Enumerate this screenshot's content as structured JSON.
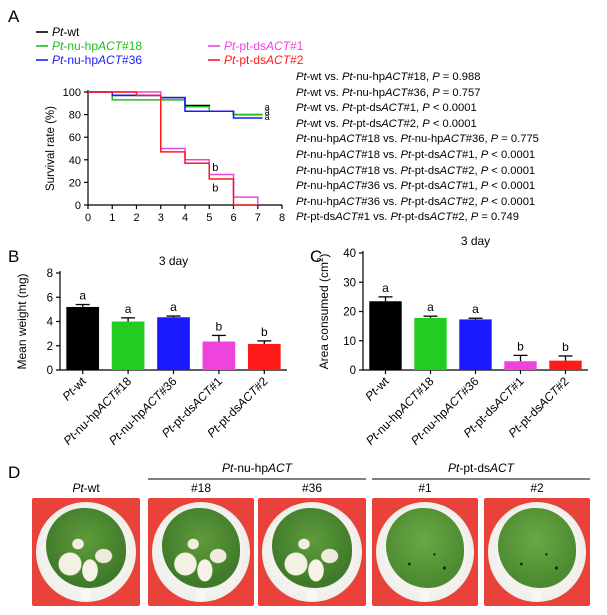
{
  "panels": {
    "a": "A",
    "b": "B",
    "c": "C",
    "d": "D"
  },
  "legend": [
    {
      "pre": "Pt",
      "mid": "-wt",
      "gene": "",
      "post": "",
      "color": "#000000"
    },
    {
      "pre": "Pt",
      "mid": "-nu-hp",
      "gene": "ACT",
      "post": "#18",
      "color": "#22bb22"
    },
    {
      "pre": "Pt",
      "mid": "-nu-hp",
      "gene": "ACT",
      "post": "#36",
      "color": "#1a1aff"
    },
    {
      "pre": "Pt",
      "mid": "-pt-ds",
      "gene": "ACT",
      "post": "#1",
      "color": "#ee44dd"
    },
    {
      "pre": "Pt",
      "mid": "-pt-ds",
      "gene": "ACT",
      "post": "#2",
      "color": "#ff1a1a"
    }
  ],
  "stats": [
    {
      "a_pre": "Pt",
      "a_mid": "-wt",
      "a_gene": "",
      "a_post": "",
      "b_pre": "Pt",
      "b_mid": "-nu-hp",
      "b_gene": "ACT",
      "b_post": "#18",
      "p_label": "P",
      "op": " = ",
      "p": "0.988"
    },
    {
      "a_pre": "Pt",
      "a_mid": "-wt",
      "a_gene": "",
      "a_post": "",
      "b_pre": "Pt",
      "b_mid": "-nu-hp",
      "b_gene": "ACT",
      "b_post": "#36",
      "p_label": "P",
      "op": " = ",
      "p": "0.757"
    },
    {
      "a_pre": "Pt",
      "a_mid": "-wt",
      "a_gene": "",
      "a_post": "",
      "b_pre": "Pt",
      "b_mid": "-pt-ds",
      "b_gene": "ACT",
      "b_post": "#1",
      "p_label": "P",
      "op": " < ",
      "p": "0.0001"
    },
    {
      "a_pre": "Pt",
      "a_mid": "-wt",
      "a_gene": "",
      "a_post": "",
      "b_pre": "Pt",
      "b_mid": "-pt-ds",
      "b_gene": "ACT",
      "b_post": "#2",
      "p_label": "P",
      "op": " < ",
      "p": "0.0001"
    },
    {
      "a_pre": "Pt",
      "a_mid": "-nu-hp",
      "a_gene": "ACT",
      "a_post": "#18",
      "b_pre": "Pt",
      "b_mid": "-nu-hp",
      "b_gene": "ACT",
      "b_post": "#36",
      "p_label": "P",
      "op": " = ",
      "p": "0.775"
    },
    {
      "a_pre": "Pt",
      "a_mid": "-nu-hp",
      "a_gene": "ACT",
      "a_post": "#18",
      "b_pre": "Pt",
      "b_mid": "-pt-ds",
      "b_gene": "ACT",
      "b_post": "#1",
      "p_label": "P",
      "op": " < ",
      "p": "0.0001"
    },
    {
      "a_pre": "Pt",
      "a_mid": "-nu-hp",
      "a_gene": "ACT",
      "a_post": "#18",
      "b_pre": "Pt",
      "b_mid": "-pt-ds",
      "b_gene": "ACT",
      "b_post": "#2",
      "p_label": "P",
      "op": " < ",
      "p": "0.0001"
    },
    {
      "a_pre": "Pt",
      "a_mid": "-nu-hp",
      "a_gene": "ACT",
      "a_post": "#36",
      "b_pre": "Pt",
      "b_mid": "-pt-ds",
      "b_gene": "ACT",
      "b_post": "#1",
      "p_label": "P",
      "op": " < ",
      "p": "0.0001"
    },
    {
      "a_pre": "Pt",
      "a_mid": "-nu-hp",
      "a_gene": "ACT",
      "a_post": "#36",
      "b_pre": "Pt",
      "b_mid": "-pt-ds",
      "b_gene": "ACT",
      "b_post": "#2",
      "p_label": "P",
      "op": " < ",
      "p": "0.0001"
    },
    {
      "a_pre": "Pt",
      "a_mid": "-pt-ds",
      "a_gene": "ACT",
      "a_post": "#1",
      "b_pre": "Pt",
      "b_mid": "-pt-ds",
      "b_gene": "ACT",
      "b_post": "#2",
      "p_label": "P",
      "op": " = ",
      "p": "0.749"
    }
  ],
  "stat_joiner": " vs. ",
  "chart_data": [
    {
      "type": "line",
      "step": true,
      "ylabel": "Survival rate (%)",
      "xlabel": "",
      "xlim": [
        0,
        8
      ],
      "ylim": [
        0,
        100
      ],
      "xticks": [
        "0",
        "1",
        "2",
        "3",
        "4",
        "5",
        "6",
        "7",
        "8"
      ],
      "yticks": [
        "0",
        "20",
        "40",
        "60",
        "80",
        "100"
      ],
      "series": [
        {
          "name": "Pt-wt",
          "color": "#000000",
          "x": [
            0,
            1,
            3,
            4,
            5,
            6,
            7.2
          ],
          "y": [
            100,
            97,
            95,
            88,
            83,
            80,
            80
          ],
          "group": "a"
        },
        {
          "name": "Pt-nu-hpACT#18",
          "color": "#22bb22",
          "x": [
            0,
            1,
            3,
            4,
            5,
            6,
            7.2
          ],
          "y": [
            100,
            93,
            93,
            87,
            83,
            80,
            80
          ],
          "group": "a"
        },
        {
          "name": "Pt-nu-hpACT#36",
          "color": "#1a1aff",
          "x": [
            0,
            1,
            3,
            4,
            5,
            6,
            7.2
          ],
          "y": [
            100,
            97,
            95,
            83,
            83,
            77,
            77
          ],
          "group": "a"
        },
        {
          "name": "Pt-pt-dsACT#1",
          "color": "#ee44dd",
          "x": [
            0,
            2,
            3,
            4,
            5,
            6,
            7
          ],
          "y": [
            100,
            100,
            50,
            40,
            27,
            7,
            0
          ],
          "group": "b"
        },
        {
          "name": "Pt-pt-dsACT#2",
          "color": "#ff1a1a",
          "x": [
            0,
            2,
            3,
            4,
            5,
            6,
            7
          ],
          "y": [
            100,
            97,
            47,
            37,
            23,
            0,
            0
          ],
          "group": "b"
        }
      ],
      "group_labels": {
        "a": [
          "a",
          "a",
          "a"
        ],
        "b": [
          "b",
          "b"
        ]
      }
    },
    {
      "type": "bar",
      "title": "3 day",
      "ylabel": "Mean weight (mg)",
      "ylim": [
        0,
        8
      ],
      "yticks": [
        "0",
        "2",
        "4",
        "6",
        "8"
      ],
      "categories": [
        {
          "pre": "Pt",
          "mid": "-wt",
          "gene": "",
          "post": ""
        },
        {
          "pre": "Pt",
          "mid": "-nu-hp",
          "gene": "ACT",
          "post": "#18"
        },
        {
          "pre": "Pt",
          "mid": "-nu-hp",
          "gene": "ACT",
          "post": "#36"
        },
        {
          "pre": "Pt",
          "mid": "-pt-ds",
          "gene": "ACT",
          "post": "#1"
        },
        {
          "pre": "Pt",
          "mid": "-pt-ds",
          "gene": "ACT",
          "post": "#2"
        }
      ],
      "values": [
        5.2,
        4.0,
        4.35,
        2.35,
        2.15
      ],
      "errors": [
        0.2,
        0.3,
        0.1,
        0.5,
        0.25
      ],
      "letters": [
        "a",
        "a",
        "a",
        "b",
        "b"
      ],
      "colors": [
        "#000000",
        "#22cc22",
        "#1a1aff",
        "#ee44dd",
        "#ff1a1a"
      ]
    },
    {
      "type": "bar",
      "title": "3 day",
      "ylabel_pre": "Area consumed (cm",
      "ylabel_sup": "2",
      "ylabel_post": ")",
      "ylim": [
        0,
        40
      ],
      "yticks": [
        "0",
        "10",
        "20",
        "30",
        "40"
      ],
      "categories": [
        {
          "pre": "Pt",
          "mid": "-wt",
          "gene": "",
          "post": ""
        },
        {
          "pre": "Pt",
          "mid": "-nu-hp",
          "gene": "ACT",
          "post": "#18"
        },
        {
          "pre": "Pt",
          "mid": "-nu-hp",
          "gene": "ACT",
          "post": "#36"
        },
        {
          "pre": "Pt",
          "mid": "-pt-ds",
          "gene": "ACT",
          "post": "#1"
        },
        {
          "pre": "Pt",
          "mid": "-pt-ds",
          "gene": "ACT",
          "post": "#2"
        }
      ],
      "values": [
        23.5,
        17.8,
        17.3,
        3.0,
        3.2
      ],
      "errors": [
        1.5,
        0.6,
        0.4,
        2.0,
        1.6
      ],
      "letters": [
        "a",
        "a",
        "a",
        "b",
        "b"
      ],
      "colors": [
        "#000000",
        "#22cc22",
        "#1a1aff",
        "#ee44dd",
        "#ff1a1a"
      ]
    }
  ],
  "photos": {
    "groups": [
      {
        "pre": "Pt",
        "mid": "-wt",
        "gene": ""
      },
      {
        "pre": "Pt",
        "mid": "-nu-hp",
        "gene": "ACT"
      },
      {
        "pre": "Pt",
        "mid": "-pt-ds",
        "gene": "ACT"
      }
    ],
    "labels": [
      "#18",
      "#36",
      "#1",
      "#2"
    ],
    "bg": "#e9423a"
  }
}
